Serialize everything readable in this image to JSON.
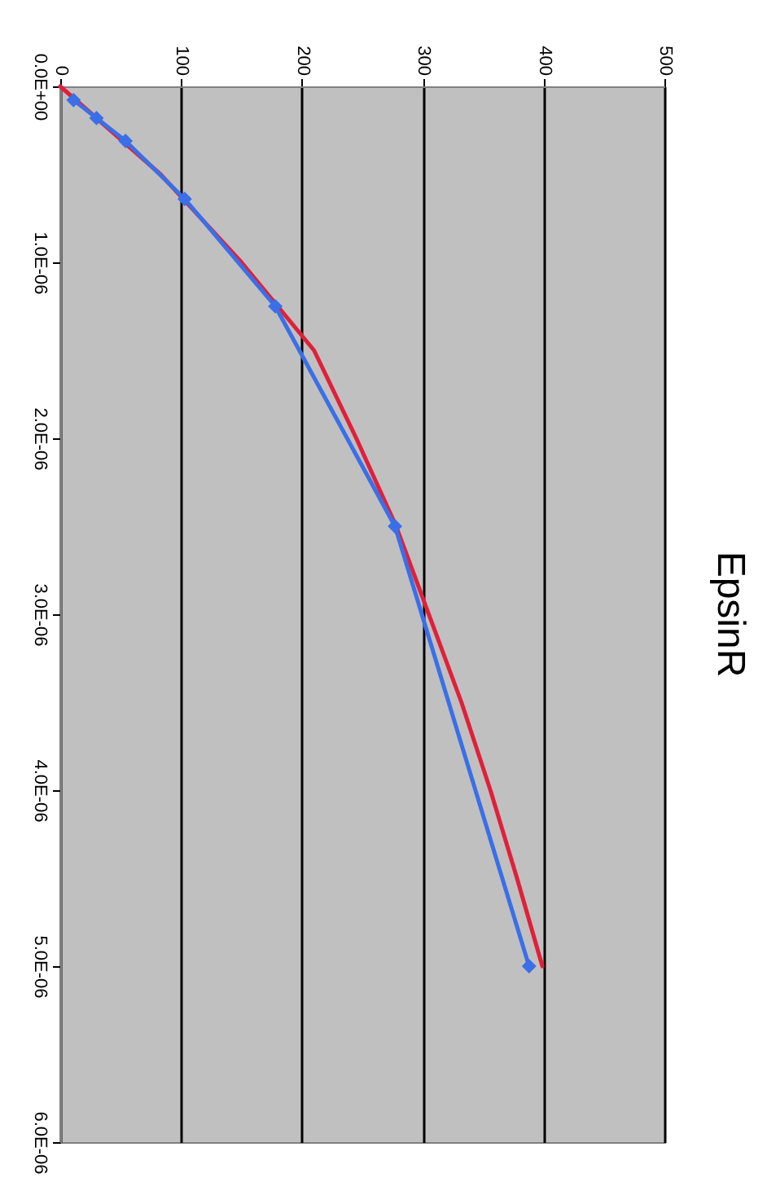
{
  "chart_data": {
    "type": "line",
    "title": "EpsinR",
    "xlim": [
      0,
      500
    ],
    "xticks": [
      0,
      100,
      200,
      300,
      400,
      500
    ],
    "ylim": [
      6e-06,
      0
    ],
    "yticks": [
      {
        "value": 0,
        "label": "0.0E+00"
      },
      {
        "value": 1e-06,
        "label": "1.0E-06"
      },
      {
        "value": 2e-06,
        "label": "2.0E-06"
      },
      {
        "value": 3e-06,
        "label": "3.0E-06"
      },
      {
        "value": 4e-06,
        "label": "4.0E-06"
      },
      {
        "value": 5e-06,
        "label": "5.0E-06"
      },
      {
        "value": 6e-06,
        "label": "6.0E-06"
      }
    ],
    "grid": "x",
    "series": [
      {
        "color": "#e0203a",
        "marker": "none",
        "x": [
          0,
          83,
          150,
          210,
          245,
          278,
          305,
          332,
          356,
          378,
          399
        ],
        "values": [
          0,
          5e-07,
          1e-06,
          1.5e-06,
          2e-06,
          2.5e-06,
          3e-06,
          3.5e-06,
          4e-06,
          4.5e-06,
          5e-06
        ]
      },
      {
        "color": "#3a6fe8",
        "marker": "diamond",
        "x": [
          11,
          30,
          54,
          103,
          178,
          277,
          388
        ],
        "values": [
          7.8e-08,
          1.8e-07,
          3.1e-07,
          6.4e-07,
          1.25e-06,
          2.5e-06,
          5e-06
        ]
      }
    ]
  }
}
